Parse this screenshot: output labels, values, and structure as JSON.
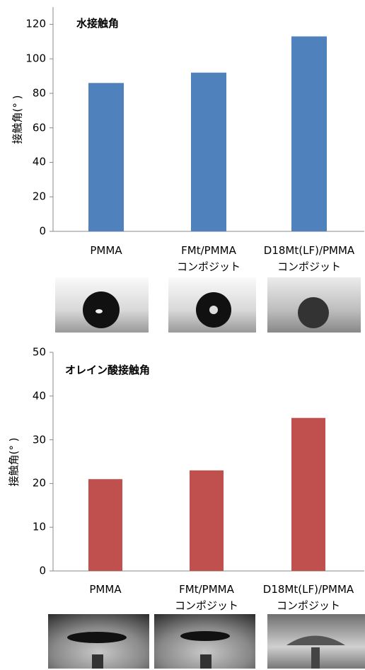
{
  "chart_data": [
    {
      "type": "bar",
      "title": "水接触角",
      "y_label": "接触角(° )",
      "categories": [
        "PMMA",
        "FMt/PMMA\nコンポジット",
        "D18Mt(LF)/PMMA\nコンポジット"
      ],
      "values": [
        86,
        92,
        113
      ],
      "color": "#4f81bd",
      "ylim": [
        0,
        130
      ],
      "yticks": [
        0,
        20,
        40,
        60,
        80,
        100,
        120
      ]
    },
    {
      "type": "bar",
      "title": "オレイン酸接触角",
      "y_label": "接触角(° )",
      "categories": [
        "PMMA",
        "FMt/PMMA\nコンポジット",
        "D18Mt(LF)/PMMA\nコンポジット"
      ],
      "values": [
        21,
        23,
        35
      ],
      "color": "#c0504d",
      "ylim": [
        0,
        50
      ],
      "yticks": [
        0,
        10,
        20,
        30,
        40,
        50
      ]
    }
  ]
}
